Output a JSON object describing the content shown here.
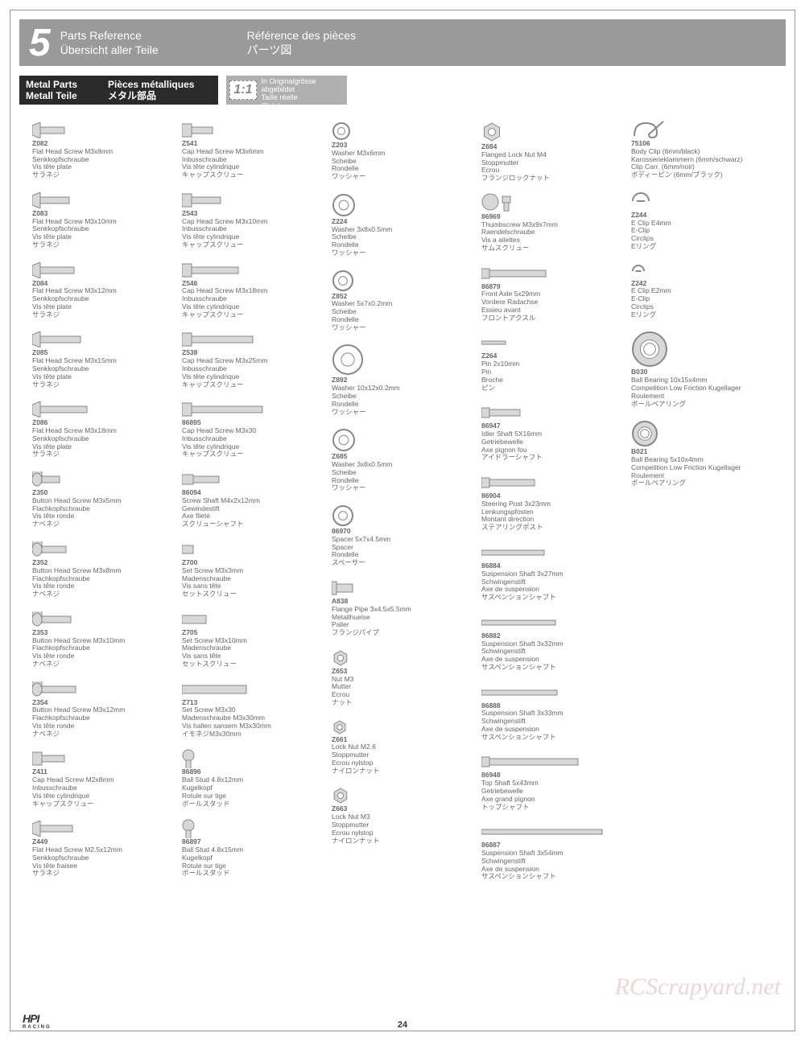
{
  "header": {
    "num": "5",
    "en": "Parts Reference",
    "de": "Übersicht aller Teile",
    "fr": "Référence des pièces",
    "jp": "パーツ図"
  },
  "sub": {
    "en": "Metal Parts",
    "de": "Metall Teile",
    "fr": "Pièces métalliques",
    "jp": "メタル部品"
  },
  "scale": {
    "ratio": "1:1",
    "l1": "Shown actual size",
    "l2": "In Originalgrösse abgebildet",
    "l3": "Taille réelle",
    "l4": "原寸大"
  },
  "columns": [
    [
      {
        "pn": "Z082",
        "lines": [
          "Flat Head Screw M3x8mm",
          "Senkkopfschraube",
          "Vis tête plate",
          "サラネジ"
        ],
        "icon": "flat",
        "len": 30
      },
      {
        "pn": "Z083",
        "lines": [
          "Flat Head Screw M3x10mm",
          "Senkkopfschraube",
          "Vis tête plate",
          "サラネジ"
        ],
        "icon": "flat",
        "len": 36
      },
      {
        "pn": "Z084",
        "lines": [
          "Flat Head Screw M3x12mm",
          "Senkkopfschraube",
          "Vis tête plate",
          "サラネジ"
        ],
        "icon": "flat",
        "len": 42
      },
      {
        "pn": "Z085",
        "lines": [
          "Flat Head Screw M3x15mm",
          "Senkkopfschraube",
          "Vis tête plate",
          "サラネジ"
        ],
        "icon": "flat",
        "len": 50
      },
      {
        "pn": "Z086",
        "lines": [
          "Flat Head Screw M3x18mm",
          "Senkkopfschraube",
          "Vis tête plate",
          "サラネジ"
        ],
        "icon": "flat",
        "len": 58
      },
      {
        "pn": "Z350",
        "lines": [
          "Button Head Screw M3x5mm",
          "Flachkopfschraube",
          "Vis tête ronde",
          "ナベネジ"
        ],
        "icon": "button",
        "len": 22
      },
      {
        "pn": "Z352",
        "lines": [
          "Button Head Screw M3x8mm",
          "Flachkopfschraube",
          "Vis tête ronde",
          "ナベネジ"
        ],
        "icon": "button",
        "len": 30
      },
      {
        "pn": "Z353",
        "lines": [
          "Button Head Screw M3x10mm",
          "Flachkopfschraube",
          "Vis tête ronde",
          "ナベネジ"
        ],
        "icon": "button",
        "len": 36
      },
      {
        "pn": "Z354",
        "lines": [
          "Button Head Screw M3x12mm",
          "Flachkopfschraube",
          "Vis tête ronde",
          "ナベネジ"
        ],
        "icon": "button",
        "len": 42
      },
      {
        "pn": "Z411",
        "lines": [
          "Cap Head Screw M2x8mm",
          "Inbusschraube",
          "Vis tête cylindrique",
          "キャップスクリュー"
        ],
        "icon": "cap",
        "len": 28
      },
      {
        "pn": "Z449",
        "lines": [
          "Flat Head Screw M2.5x12mm",
          "Senkkopfschraube",
          "Vis tête fraisee",
          "サラネジ"
        ],
        "icon": "flat",
        "len": 40
      }
    ],
    [
      {
        "pn": "Z541",
        "lines": [
          "Cap Head Screw M3x6mm",
          "Inbusschraube",
          "Vis tête cylindrique",
          "キャップスクリュー"
        ],
        "icon": "cap",
        "len": 26
      },
      {
        "pn": "Z543",
        "lines": [
          "Cap Head Screw M3x10mm",
          "Inbusschraube",
          "Vis tête cylindrique",
          "キャップスクリュー"
        ],
        "icon": "cap",
        "len": 36
      },
      {
        "pn": "Z546",
        "lines": [
          "Cap Head Screw M3x18mm",
          "Inbusschraube",
          "Vis tête cylindrique",
          "キャップスクリュー"
        ],
        "icon": "cap",
        "len": 58
      },
      {
        "pn": "Z538",
        "lines": [
          "Cap Head Screw M3x25mm",
          "Inbusschraube",
          "Vis tête cylindrique",
          "キャップスクリュー"
        ],
        "icon": "cap",
        "len": 76
      },
      {
        "pn": "86895",
        "lines": [
          "Cap Head Screw M3x30",
          "Inbusschraube",
          "Vis tête cylindrique",
          "キャップスクリュー"
        ],
        "icon": "cap",
        "len": 88
      },
      {
        "pn": "86094",
        "lines": [
          "Screw Shaft M4x2x12mm",
          "Gewindestift",
          "Axe fileté",
          "スクリューシャフト"
        ],
        "icon": "stud",
        "len": 42
      },
      {
        "pn": "Z700",
        "lines": [
          "Set Screw M3x3mm",
          "Madenschraube",
          "Vis sans tête",
          "セットスクリュー"
        ],
        "icon": "set",
        "len": 14
      },
      {
        "pn": "Z705",
        "lines": [
          "Set Screw M3x10mm",
          "Madenschraube",
          "Vis sans tête",
          "セットスクリュー"
        ],
        "icon": "set",
        "len": 30
      },
      {
        "pn": "Z713",
        "lines": [
          "Set Screw M3x30",
          "Madenschraube M3x30mm",
          "Vis hallen sansem M3x30mm",
          "イモネジM3x30mm"
        ],
        "icon": "set",
        "len": 80
      },
      {
        "pn": "86896",
        "lines": [
          "Ball Stud 4.8x12mm",
          "Kugelkopf",
          "Rotule sur tige",
          "ボールスタッド"
        ],
        "icon": "ball",
        "len": 34
      },
      {
        "pn": "86897",
        "lines": [
          "Ball Stud 4.8x15mm",
          "Kugelkopf",
          "Rotule sur tige",
          "ボールスタッド"
        ],
        "icon": "ball",
        "len": 40
      }
    ],
    [
      {
        "pn": "Z203",
        "lines": [
          "Washer M3x6mm",
          "Scheibe",
          "Rondelle",
          "ワッシャー"
        ],
        "icon": "washer",
        "len": 20
      },
      {
        "pn": "Z224",
        "lines": [
          "Washer 3x8x0.5mm",
          "Scheibe",
          "Rondelle",
          "ワッシャー"
        ],
        "icon": "washer",
        "len": 26
      },
      {
        "pn": "Z852",
        "lines": [
          "Washer 5x7x0.2mm",
          "Scheibe",
          "Rondelle",
          "ワッシャー"
        ],
        "icon": "washer",
        "len": 24
      },
      {
        "pn": "Z892",
        "lines": [
          "Washer 10x12x0.2mm",
          "Scheibe",
          "Rondelle",
          "ワッシャー"
        ],
        "icon": "washer",
        "len": 36
      },
      {
        "pn": "Z685",
        "lines": [
          "Washer 3x8x0.5mm",
          "Scheibe",
          "Rondelle",
          "ワッシャー"
        ],
        "icon": "washer",
        "len": 26
      },
      {
        "pn": "86970",
        "lines": [
          "Spacer 5x7x4.5mm",
          "Spacer",
          "Rondelle",
          "スペーサー"
        ],
        "icon": "washer",
        "len": 24
      },
      {
        "pn": "A838",
        "lines": [
          "Flange Pipe 3x4.5x5.5mm",
          "Metallhuelse",
          "Palier",
          "フランジパイプ"
        ],
        "icon": "flange",
        "len": 20
      },
      {
        "pn": "Z653",
        "lines": [
          "Nut M3",
          "Mutter",
          "Ecrou",
          "ナット"
        ],
        "icon": "nut",
        "len": 18
      },
      {
        "pn": "Z661",
        "lines": [
          "Lock Nut M2.6",
          "Stoppmutter",
          "Ecrou nylstop",
          "ナイロンナット"
        ],
        "icon": "nut",
        "len": 16
      },
      {
        "pn": "Z663",
        "lines": [
          "Lock Nut M3",
          "Stoppmutter",
          "Ecrou nylstop",
          "ナイロンナット"
        ],
        "icon": "nut",
        "len": 18
      }
    ],
    [
      {
        "pn": "Z684",
        "lines": [
          "Flanged Lock Nut M4",
          "Stoppmutter",
          "Ecrou",
          "フランジロックナット"
        ],
        "icon": "nut",
        "len": 22
      },
      {
        "pn": "86969",
        "lines": [
          "Thumbscrew M3x9x7mm",
          "Raendelschraube",
          "Vis a ailettes",
          "サムスクリュー"
        ],
        "icon": "thumb",
        "len": 30
      },
      {
        "pn": "86879",
        "lines": [
          "Front Axle 5x29mm",
          "Vordere Radachse",
          "Essieu avant",
          "フロントアクスル"
        ],
        "icon": "shaft",
        "len": 80
      },
      {
        "pn": "Z264",
        "lines": [
          "Pin 2x10mm",
          "Pin",
          "Broche",
          "ピン"
        ],
        "icon": "pin",
        "len": 30
      },
      {
        "pn": "86947",
        "lines": [
          "Idler Shaft 5X16mm",
          "Getriebewelle",
          "Axe pignon fou",
          "アイドラーシャフト"
        ],
        "icon": "shaft",
        "len": 48
      },
      {
        "pn": "86904",
        "lines": [
          "Steering Post 3x23mm",
          "Lenkungspfosten",
          "Montant direction",
          "ステアリングポスト"
        ],
        "icon": "shaft",
        "len": 66
      },
      {
        "pn": "86884",
        "lines": [
          "Suspension Shaft 3x27mm",
          "Schwingenstift",
          "Axe de suspension",
          "サスペンションシャフト"
        ],
        "icon": "bar",
        "len": 78
      },
      {
        "pn": "86882",
        "lines": [
          "Suspension Shaft 3x32mm",
          "Schwingenstift",
          "Axe de suspension",
          "サスペンションシャフト"
        ],
        "icon": "bar",
        "len": 92
      },
      {
        "pn": "86888",
        "lines": [
          "Suspension Shaft 3x33mm",
          "Schwingenstift",
          "Axe de suspension",
          "サスペンションシャフト"
        ],
        "icon": "bar",
        "len": 94
      },
      {
        "pn": "86948",
        "lines": [
          "Top Shaft 5x43mm",
          "Getriebewelle",
          "Axe grand pignon",
          "トップシャフト"
        ],
        "icon": "shaft",
        "len": 120
      },
      {
        "pn": "86887",
        "lines": [
          "Suspension Shaft 3x54mm",
          "Schwingenstift",
          "Axe de suspension",
          "サスペンションシャフト"
        ],
        "icon": "bar",
        "len": 150
      }
    ],
    [
      {
        "pn": "75106",
        "lines": [
          "Body Clip (6mm/black)",
          "Karosserieklammern (6mm/schwarz)",
          "Clip Carr. (6mm/noir)",
          "ボディーピン (6mm/ブラック)"
        ],
        "icon": "clip",
        "len": 40
      },
      {
        "pn": "Z244",
        "lines": [
          "E Clip E4mm",
          "E-Clip",
          "Circlips",
          "Eリング"
        ],
        "icon": "eclip",
        "len": 20
      },
      {
        "pn": "Z242",
        "lines": [
          "E Clip E2mm",
          "E-Clip",
          "Circlips",
          "Eリング"
        ],
        "icon": "eclip",
        "len": 14
      },
      {
        "pn": "B030",
        "lines": [
          "Ball Bearing 10x15x4mm",
          "Competition Low Friction Kugellager",
          "Roulement",
          "ボールベアリング"
        ],
        "icon": "bearing",
        "len": 42
      },
      {
        "pn": "B021",
        "lines": [
          "Ball Bearing 5x10x4mm",
          "Competition Low Friction Kugellager",
          "Roulement",
          "ボールベアリング"
        ],
        "icon": "bearing",
        "len": 30
      }
    ]
  ],
  "pagenum": "24",
  "logo": "HPI",
  "logosub": "RACING",
  "watermark": "RCScrapyard.net",
  "colors": {
    "header": "#9a9a9a",
    "sub": "#2a2a2a",
    "text": "#666666",
    "stroke": "#888888"
  }
}
